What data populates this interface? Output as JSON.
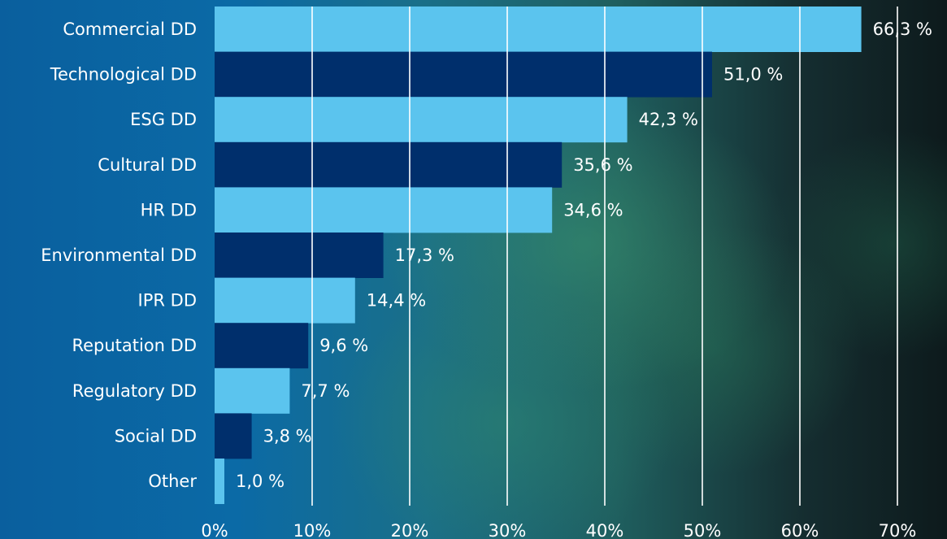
{
  "chart_data": {
    "type": "bar",
    "orientation": "horizontal",
    "categories": [
      "Commercial DD",
      "Technological DD",
      "ESG DD",
      "Cultural DD",
      "HR DD",
      "Environmental DD",
      "IPR DD",
      "Reputation DD",
      "Regulatory DD",
      "Social DD",
      "Other"
    ],
    "values": [
      66.3,
      51.0,
      42.3,
      35.6,
      34.6,
      17.3,
      14.4,
      9.6,
      7.7,
      3.8,
      1.0
    ],
    "value_labels": [
      "66,3 %",
      "51,0 %",
      "42,3 %",
      "35,6 %",
      "34,6 %",
      "17,3 %",
      "14,4 %",
      "9,6 %",
      "7,7 %",
      "3,8 %",
      "1,0 %"
    ],
    "xlim": [
      0,
      70
    ],
    "x_ticks": [
      "0%",
      "10%",
      "20%",
      "30%",
      "40%",
      "50%",
      "60%",
      "70%"
    ],
    "grid": "vertical",
    "colors": {
      "light": "#5bc4ee",
      "dark": "#002f6c",
      "grid": "#ffffff",
      "text": "#ffffff"
    },
    "title": "",
    "xlabel": "",
    "ylabel": ""
  }
}
